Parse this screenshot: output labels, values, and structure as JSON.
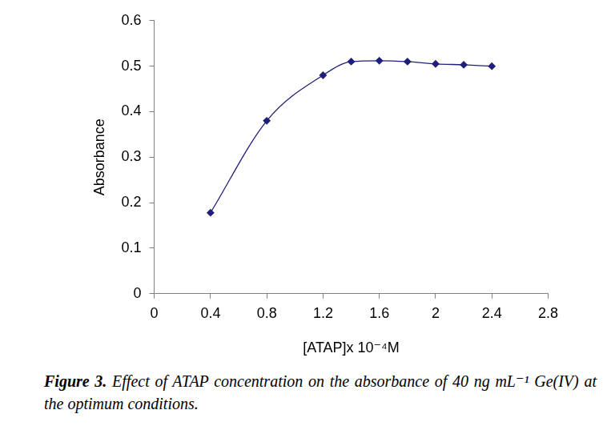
{
  "chart_data": {
    "type": "line",
    "caption_label": "Figure 3.",
    "caption": "Effect of ATAP concentration on the absorbance of 40 ng mL⁻¹ Ge(IV) at the optimum conditions.",
    "x_label": "[ATAP]x 10⁻⁴M",
    "y_label": "Absorbance",
    "x": [
      0.4,
      0.8,
      1.2,
      1.4,
      1.6,
      1.8,
      2.0,
      2.2,
      2.4
    ],
    "values": [
      0.178,
      0.38,
      0.48,
      0.51,
      0.512,
      0.51,
      0.505,
      0.503,
      0.5
    ],
    "color": "#1f1f7a",
    "marker": "diamond",
    "line_style": "smooth",
    "xlim": [
      0,
      2.8
    ],
    "xticks": [
      0,
      0.4,
      0.8,
      1.2,
      1.6,
      2,
      2.4,
      2.8
    ],
    "ylim": [
      0,
      0.6
    ],
    "yticks": [
      0,
      0.1,
      0.2,
      0.3,
      0.4,
      0.5,
      0.6
    ],
    "grid": false
  }
}
